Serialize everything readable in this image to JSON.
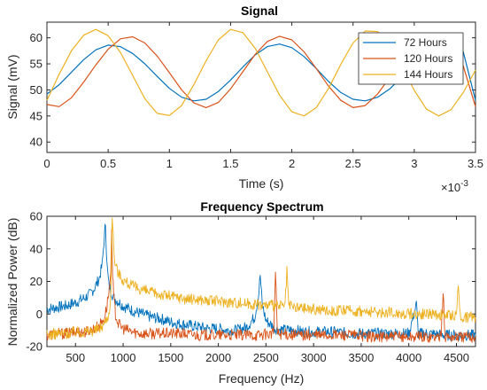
{
  "chart_data": [
    {
      "type": "line",
      "title": "Signal",
      "xlabel": "Time (s)",
      "ylabel": "Signal (mV)",
      "x_exponent_label": "×10",
      "x_exponent_power": "-3",
      "xlim": [
        0,
        0.0035
      ],
      "ylim": [
        38,
        63
      ],
      "xticks": [
        0,
        0.0005,
        0.001,
        0.0015,
        0.002,
        0.0025,
        0.003,
        0.0035
      ],
      "xtick_labels": [
        "0",
        "0.5",
        "1",
        "1.5",
        "2",
        "2.5",
        "3",
        "3.5"
      ],
      "yticks": [
        40,
        45,
        50,
        55,
        60
      ],
      "ytick_labels": [
        "40",
        "45",
        "50",
        "55",
        "60"
      ],
      "legend_position": "top-right",
      "series": [
        {
          "name": "72 Hours",
          "color": "#0072BD",
          "x": [
            0,
            0.0001,
            0.0002,
            0.0003,
            0.0004,
            0.0005,
            0.0006,
            0.0007,
            0.0008,
            0.0009,
            0.001,
            0.0011,
            0.0012,
            0.0013,
            0.0014,
            0.0015,
            0.0016,
            0.0017,
            0.0018,
            0.0019,
            0.002,
            0.0021,
            0.0022,
            0.0023,
            0.0024,
            0.0025,
            0.0026,
            0.0027,
            0.0028,
            0.0029,
            0.003,
            0.0031,
            0.0032,
            0.0033,
            0.0034,
            0.0035
          ],
          "values": [
            49.2,
            51.0,
            53.4,
            55.8,
            57.7,
            58.6,
            58.3,
            57.0,
            55.0,
            52.6,
            50.3,
            48.6,
            47.9,
            48.2,
            49.7,
            51.9,
            54.4,
            56.7,
            58.3,
            58.8,
            58.1,
            56.4,
            54.1,
            51.6,
            49.5,
            48.2,
            47.9,
            48.6,
            50.2,
            52.5,
            55.0,
            57.1,
            58.4,
            58.5,
            57.3,
            48.0
          ]
        },
        {
          "name": "120 Hours",
          "color": "#D95319",
          "x": [
            0,
            0.0001,
            0.0002,
            0.0003,
            0.0004,
            0.0005,
            0.0006,
            0.0007,
            0.0008,
            0.0009,
            0.001,
            0.0011,
            0.0012,
            0.0013,
            0.0014,
            0.0015,
            0.0016,
            0.0017,
            0.0018,
            0.0019,
            0.002,
            0.0021,
            0.0022,
            0.0023,
            0.0024,
            0.0025,
            0.0026,
            0.0027,
            0.0028,
            0.0029,
            0.003,
            0.0031,
            0.0032,
            0.0033,
            0.0034,
            0.0035
          ],
          "values": [
            47.2,
            46.8,
            48.5,
            51.5,
            54.8,
            57.8,
            59.8,
            60.2,
            59.0,
            56.5,
            53.3,
            50.0,
            47.5,
            46.6,
            47.6,
            50.2,
            53.5,
            56.8,
            59.3,
            60.3,
            59.6,
            57.3,
            54.1,
            50.7,
            48.0,
            46.6,
            47.0,
            49.2,
            52.4,
            55.8,
            58.6,
            60.1,
            59.9,
            57.9,
            54.6,
            46.8
          ]
        },
        {
          "name": "144 Hours",
          "color": "#EDB120",
          "x": [
            0,
            0.0001,
            0.0002,
            0.0003,
            0.0004,
            0.0005,
            0.0006,
            0.0007,
            0.0008,
            0.0009,
            0.001,
            0.0011,
            0.0012,
            0.0013,
            0.0014,
            0.0015,
            0.0016,
            0.0017,
            0.0018,
            0.0019,
            0.002,
            0.0021,
            0.0022,
            0.0023,
            0.0024,
            0.0025,
            0.0026,
            0.0027,
            0.0028,
            0.0029,
            0.003,
            0.0031,
            0.0032,
            0.0033,
            0.0034,
            0.0035
          ],
          "values": [
            48.0,
            53.0,
            57.5,
            60.5,
            61.6,
            60.4,
            57.2,
            52.8,
            48.3,
            45.5,
            45.1,
            47.0,
            51.0,
            55.6,
            59.6,
            61.6,
            61.0,
            58.0,
            53.5,
            49.0,
            45.8,
            45.0,
            46.6,
            50.3,
            54.9,
            59.0,
            61.3,
            61.2,
            58.8,
            54.5,
            49.9,
            46.3,
            45.0,
            46.2,
            49.5,
            53.8
          ]
        }
      ]
    },
    {
      "type": "line",
      "title": "Frequency Spectrum",
      "xlabel": "Frequency (Hz)",
      "ylabel": "Normalized Power (dB)",
      "xlim": [
        200,
        4700
      ],
      "ylim": [
        -20,
        60
      ],
      "xticks": [
        500,
        1000,
        1500,
        2000,
        2500,
        3000,
        3500,
        4000,
        4500
      ],
      "xtick_labels": [
        "500",
        "1000",
        "1500",
        "2000",
        "2500",
        "3000",
        "3500",
        "4000",
        "4500"
      ],
      "yticks": [
        -20,
        0,
        20,
        40,
        60
      ],
      "ytick_labels": [
        "-20",
        "0",
        "20",
        "40",
        "60"
      ],
      "series": [
        {
          "name": "72 Hours",
          "color": "#0072BD",
          "x": [
            200,
            300,
            400,
            500,
            600,
            650,
            700,
            750,
            780,
            800,
            815,
            830,
            850,
            900,
            1000,
            1100,
            1200,
            1300,
            1400,
            1500,
            1600,
            1700,
            1800,
            1900,
            2000,
            2100,
            2200,
            2300,
            2380,
            2420,
            2440,
            2460,
            2500,
            2600,
            2700,
            2800,
            2900,
            3000,
            3200,
            3400,
            3600,
            3800,
            4000,
            4080,
            4100,
            4200,
            4400,
            4600,
            4700
          ],
          "values": [
            3,
            4,
            5,
            7,
            10,
            12,
            16,
            22,
            30,
            45,
            56,
            30,
            18,
            10,
            5,
            2,
            0,
            -2,
            -3,
            -5,
            -6,
            -7,
            -8,
            -9,
            -9,
            -10,
            -10,
            -8,
            -2,
            10,
            24,
            6,
            -4,
            -9,
            -10,
            -10,
            -11,
            -11,
            -11,
            -12,
            -12,
            -12,
            -12,
            6,
            -12,
            -12,
            -13,
            -13,
            -13
          ]
        },
        {
          "name": "120 Hours",
          "color": "#D95319",
          "x": [
            200,
            300,
            400,
            500,
            600,
            700,
            750,
            800,
            830,
            860,
            870,
            880,
            890,
            905,
            920,
            950,
            1000,
            1100,
            1200,
            1400,
            1600,
            1800,
            2000,
            2200,
            2400,
            2580,
            2600,
            2620,
            2800,
            3000,
            3200,
            3400,
            3600,
            3800,
            4000,
            4200,
            4340,
            4360,
            4380,
            4500,
            4700
          ],
          "values": [
            -13,
            -12,
            -12,
            -11,
            -11,
            -9,
            -7,
            -3,
            5,
            18,
            25,
            52,
            22,
            8,
            0,
            -6,
            -9,
            -11,
            -12,
            -12,
            -12,
            -13,
            -13,
            -13,
            -13,
            -12,
            25,
            -12,
            -13,
            -13,
            -13,
            -13,
            -14,
            -14,
            -14,
            -14,
            -14,
            15,
            -14,
            -14,
            -14
          ]
        },
        {
          "name": "144 Hours",
          "color": "#EDB120",
          "x": [
            200,
            300,
            400,
            500,
            600,
            700,
            750,
            800,
            850,
            870,
            885,
            895,
            905,
            920,
            950,
            1000,
            1100,
            1200,
            1300,
            1400,
            1500,
            1600,
            1700,
            1800,
            1900,
            2000,
            2200,
            2400,
            2600,
            2700,
            2720,
            2740,
            2800,
            3000,
            3200,
            3400,
            3600,
            3800,
            4000,
            4200,
            4400,
            4500,
            4520,
            4540,
            4600,
            4700
          ],
          "values": [
            -13,
            -12,
            -12,
            -11,
            -11,
            -10,
            -9,
            -6,
            0,
            10,
            59,
            50,
            36,
            30,
            25,
            21,
            17,
            15,
            13,
            12,
            11,
            10,
            9,
            9,
            8,
            8,
            7,
            6,
            5,
            5,
            26,
            5,
            4,
            3,
            2,
            2,
            1,
            1,
            0,
            0,
            -1,
            -1,
            18,
            -1,
            -2,
            -2
          ]
        }
      ]
    }
  ]
}
